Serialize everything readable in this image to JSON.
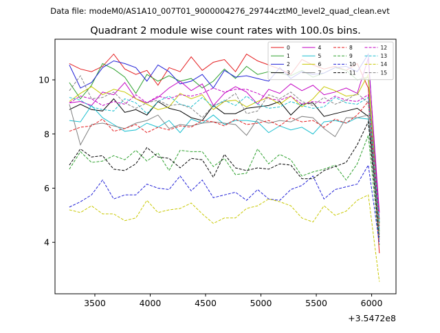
{
  "figure": {
    "suptitle": "Data file: modeM0/AS1A10_007T01_9000004276_29744cztM0_level2_quad_clean.evt"
  },
  "chart_data": {
    "type": "line",
    "title": "Quadrant 2 module wise count rates with 100.0s bins.",
    "xlabel": "",
    "ylabel": "",
    "x_offset_label": "+3.5472e8",
    "xlim": [
      3140,
      6220
    ],
    "ylim": [
      2.1,
      11.5
    ],
    "xticks": [
      3500,
      4000,
      4500,
      5000,
      5500,
      6000
    ],
    "yticks": [
      4,
      6,
      8,
      10
    ],
    "grid": false,
    "legend_location": "top-right",
    "legend_columns": 4,
    "x": [
      3270,
      3370,
      3470,
      3570,
      3670,
      3770,
      3870,
      3970,
      4070,
      4170,
      4270,
      4370,
      4470,
      4570,
      4670,
      4770,
      4870,
      4970,
      5070,
      5170,
      5270,
      5370,
      5470,
      5570,
      5670,
      5770,
      5870,
      5970,
      6070
    ],
    "series": [
      {
        "name": "0",
        "color": "#e41a1c",
        "dash": "solid",
        "values": [
          10.6,
          10.4,
          10.3,
          10.5,
          10.95,
          10.4,
          10.2,
          10.35,
          9.8,
          10.45,
          10.3,
          10.85,
          10.35,
          10.65,
          10.75,
          10.3,
          10.95,
          10.7,
          10.55,
          10.4,
          10.2,
          10.75,
          10.55,
          10.4,
          10.5,
          10.35,
          10.6,
          9.7,
          3.6
        ]
      },
      {
        "name": "1",
        "color": "#2ca02c",
        "dash": "solid",
        "values": [
          9.9,
          9.3,
          9.8,
          10.6,
          10.4,
          10.1,
          9.5,
          10.2,
          9.95,
          10.15,
          9.95,
          10.05,
          9.7,
          9.95,
          10.4,
          10.05,
          10.5,
          10.2,
          10.3,
          10.25,
          10.15,
          10.35,
          10.1,
          10.25,
          10.45,
          10.35,
          10.0,
          10.1,
          4.4
        ]
      },
      {
        "name": "2",
        "color": "#1f1fd6",
        "dash": "solid",
        "values": [
          10.55,
          9.7,
          9.9,
          10.45,
          10.7,
          10.6,
          10.45,
          9.95,
          10.55,
          10.3,
          9.85,
          9.95,
          10.2,
          9.7,
          10.35,
          10.1,
          10.15,
          10.05,
          9.95,
          10.45,
          10.05,
          10.3,
          10.2,
          10.25,
          10.45,
          10.5,
          10.3,
          10.95,
          4.7
        ]
      },
      {
        "name": "3",
        "color": "#000000",
        "dash": "solid",
        "values": [
          8.9,
          9.1,
          8.9,
          8.85,
          9.3,
          8.8,
          8.9,
          8.7,
          9.2,
          8.95,
          8.85,
          8.6,
          8.5,
          9.05,
          8.75,
          8.75,
          8.95,
          9.0,
          9.05,
          9.2,
          8.7,
          9.1,
          9.15,
          8.65,
          8.75,
          8.85,
          8.95,
          8.65,
          4.85
        ]
      },
      {
        "name": "4",
        "color": "#c200c2",
        "dash": "solid",
        "values": [
          9.15,
          9.2,
          9.05,
          9.55,
          9.45,
          9.9,
          9.3,
          9.15,
          9.35,
          9.7,
          9.95,
          9.6,
          9.85,
          9.05,
          9.5,
          9.75,
          9.55,
          9.1,
          9.65,
          9.5,
          9.85,
          9.6,
          9.8,
          9.45,
          9.55,
          9.7,
          9.5,
          10.8,
          5.1
        ]
      },
      {
        "name": "5",
        "color": "#17becf",
        "dash": "solid",
        "values": [
          8.5,
          8.45,
          9.05,
          8.6,
          8.35,
          8.1,
          8.15,
          8.4,
          8.25,
          8.5,
          8.05,
          8.55,
          8.4,
          8.7,
          8.35,
          8.5,
          8.5,
          8.45,
          8.05,
          8.3,
          8.15,
          8.25,
          8.0,
          8.45,
          8.5,
          8.4,
          8.6,
          8.55,
          4.5
        ]
      },
      {
        "name": "6",
        "color": "#c8c800",
        "dash": "solid",
        "values": [
          9.2,
          9.5,
          9.75,
          9.45,
          9.65,
          9.55,
          9.3,
          9.1,
          8.9,
          9.0,
          9.5,
          9.3,
          9.45,
          8.9,
          9.2,
          9.25,
          9.0,
          9.2,
          9.35,
          9.1,
          9.4,
          9.0,
          9.3,
          9.75,
          9.6,
          9.4,
          9.45,
          10.2,
          4.7
        ]
      },
      {
        "name": "7",
        "color": "#808080",
        "dash": "solid",
        "values": [
          9.1,
          7.6,
          8.35,
          8.4,
          8.3,
          8.2,
          8.4,
          8.5,
          8.7,
          8.2,
          8.35,
          8.3,
          8.4,
          8.45,
          8.4,
          8.35,
          7.95,
          8.55,
          8.4,
          8.5,
          8.45,
          8.65,
          8.6,
          8.2,
          7.9,
          8.6,
          8.6,
          8.7,
          4.1
        ]
      },
      {
        "name": "8",
        "color": "#e41a1c",
        "dash": "dashed",
        "values": [
          8.1,
          8.25,
          8.3,
          8.55,
          8.1,
          8.2,
          8.35,
          8.05,
          8.25,
          8.15,
          8.3,
          8.25,
          8.5,
          8.45,
          8.3,
          8.55,
          8.35,
          8.4,
          8.5,
          8.3,
          8.6,
          8.45,
          8.5,
          8.25,
          8.55,
          8.4,
          8.7,
          9.2,
          4.6
        ]
      },
      {
        "name": "9",
        "color": "#2ca02c",
        "dash": "dashed",
        "values": [
          6.7,
          7.35,
          6.95,
          7.0,
          7.2,
          7.05,
          7.4,
          7.0,
          7.3,
          6.65,
          7.4,
          7.35,
          7.35,
          6.8,
          7.1,
          6.5,
          6.55,
          7.45,
          6.9,
          7.25,
          7.05,
          6.45,
          6.6,
          6.7,
          6.85,
          6.3,
          6.9,
          7.95,
          3.9
        ]
      },
      {
        "name": "10",
        "color": "#1f1fd6",
        "dash": "dashed",
        "values": [
          5.3,
          5.5,
          5.75,
          6.3,
          5.6,
          5.75,
          5.75,
          6.15,
          6.0,
          5.95,
          6.45,
          5.9,
          6.3,
          5.65,
          5.75,
          5.85,
          5.55,
          5.95,
          5.6,
          5.55,
          5.95,
          6.1,
          6.45,
          5.6,
          5.95,
          6.05,
          6.15,
          6.85,
          3.95
        ]
      },
      {
        "name": "11",
        "color": "#000000",
        "dash": "dashed",
        "values": [
          6.85,
          7.45,
          7.15,
          7.2,
          6.7,
          6.65,
          6.9,
          7.5,
          7.15,
          7.1,
          6.75,
          7.1,
          7.05,
          6.4,
          7.25,
          6.75,
          6.65,
          6.75,
          6.7,
          6.9,
          6.85,
          6.35,
          6.35,
          6.65,
          6.8,
          6.95,
          7.6,
          8.45,
          4.2
        ]
      },
      {
        "name": "12",
        "color": "#c200c2",
        "dash": "dashed",
        "values": [
          9.15,
          9.4,
          9.3,
          9.05,
          9.2,
          9.1,
          9.45,
          9.15,
          9.4,
          9.3,
          9.45,
          9.4,
          9.5,
          9.7,
          9.55,
          9.65,
          9.65,
          9.5,
          9.3,
          9.25,
          9.4,
          9.1,
          9.2,
          9.15,
          9.4,
          9.25,
          9.2,
          9.45,
          4.9
        ]
      },
      {
        "name": "13",
        "color": "#17becf",
        "dash": "dashed",
        "values": [
          9.35,
          9.25,
          9.0,
          8.9,
          8.85,
          9.3,
          9.15,
          8.75,
          9.2,
          9.4,
          9.1,
          9.0,
          9.35,
          9.0,
          9.25,
          9.05,
          9.4,
          9.1,
          8.95,
          9.0,
          9.2,
          9.05,
          8.95,
          9.0,
          9.35,
          9.15,
          9.1,
          9.35,
          4.75
        ]
      },
      {
        "name": "14",
        "color": "#c8c800",
        "dash": "dashed",
        "values": [
          5.2,
          5.1,
          5.35,
          5.05,
          5.05,
          4.8,
          4.9,
          5.55,
          5.1,
          5.2,
          5.25,
          5.45,
          5.05,
          4.7,
          4.9,
          4.9,
          5.25,
          5.35,
          5.6,
          5.5,
          5.35,
          4.9,
          4.75,
          5.35,
          5.0,
          5.15,
          5.55,
          5.75,
          2.55
        ]
      },
      {
        "name": "15",
        "color": "#808080",
        "dash": "dashed",
        "values": [
          9.6,
          10.15,
          9.3,
          9.35,
          9.55,
          9.15,
          8.95,
          9.15,
          9.25,
          9.05,
          9.1,
          8.95,
          8.6,
          9.05,
          9.2,
          9.5,
          8.75,
          8.85,
          9.45,
          9.3,
          9.55,
          9.2,
          9.05,
          9.35,
          9.1,
          9.25,
          9.5,
          9.15,
          4.3
        ]
      }
    ]
  }
}
